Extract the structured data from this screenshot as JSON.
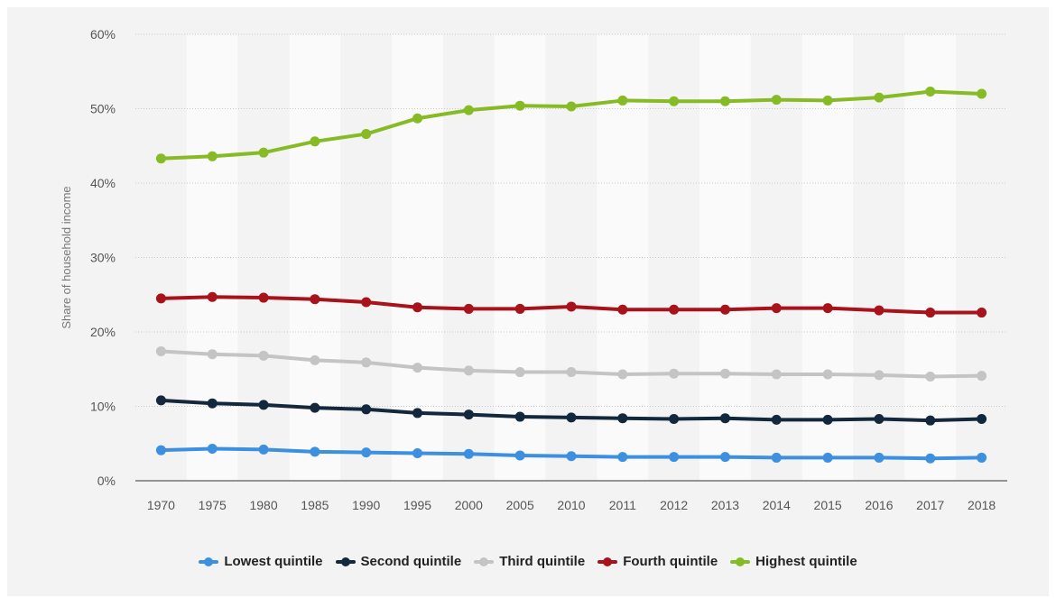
{
  "chart_data": {
    "type": "line",
    "title": "",
    "xlabel": "",
    "ylabel": "Share of household income",
    "categories": [
      "1970",
      "1975",
      "1980",
      "1985",
      "1990",
      "1995",
      "2000",
      "2005",
      "2010",
      "2011",
      "2012",
      "2013",
      "2014",
      "2015",
      "2016",
      "2017",
      "2018"
    ],
    "ylim": [
      0,
      60
    ],
    "yticks": [
      "0%",
      "10%",
      "20%",
      "30%",
      "40%",
      "50%",
      "60%"
    ],
    "grid": true,
    "legend_position": "bottom",
    "series": [
      {
        "name": "Lowest quintile",
        "color": "#3d8fe0",
        "values": [
          4.1,
          4.3,
          4.2,
          3.9,
          3.8,
          3.7,
          3.6,
          3.4,
          3.3,
          3.2,
          3.2,
          3.2,
          3.1,
          3.1,
          3.1,
          3.0,
          3.1
        ]
      },
      {
        "name": "Second quintile",
        "color": "#13283d",
        "values": [
          10.8,
          10.4,
          10.2,
          9.8,
          9.6,
          9.1,
          8.9,
          8.6,
          8.5,
          8.4,
          8.3,
          8.4,
          8.2,
          8.2,
          8.3,
          8.1,
          8.3
        ]
      },
      {
        "name": "Third quintile",
        "color": "#c4c4c4",
        "values": [
          17.4,
          17.0,
          16.8,
          16.2,
          15.9,
          15.2,
          14.8,
          14.6,
          14.6,
          14.3,
          14.4,
          14.4,
          14.3,
          14.3,
          14.2,
          14.0,
          14.1
        ]
      },
      {
        "name": "Fourth quintile",
        "color": "#a8121a",
        "values": [
          24.5,
          24.7,
          24.6,
          24.4,
          24.0,
          23.3,
          23.1,
          23.1,
          23.4,
          23.0,
          23.0,
          23.0,
          23.2,
          23.2,
          22.9,
          22.6,
          22.6
        ]
      },
      {
        "name": "Highest quintile",
        "color": "#86bb26",
        "values": [
          43.3,
          43.6,
          44.1,
          45.6,
          46.6,
          48.7,
          49.8,
          50.4,
          50.3,
          51.1,
          51.0,
          51.0,
          51.2,
          51.1,
          51.5,
          52.3,
          52.0
        ]
      }
    ]
  }
}
